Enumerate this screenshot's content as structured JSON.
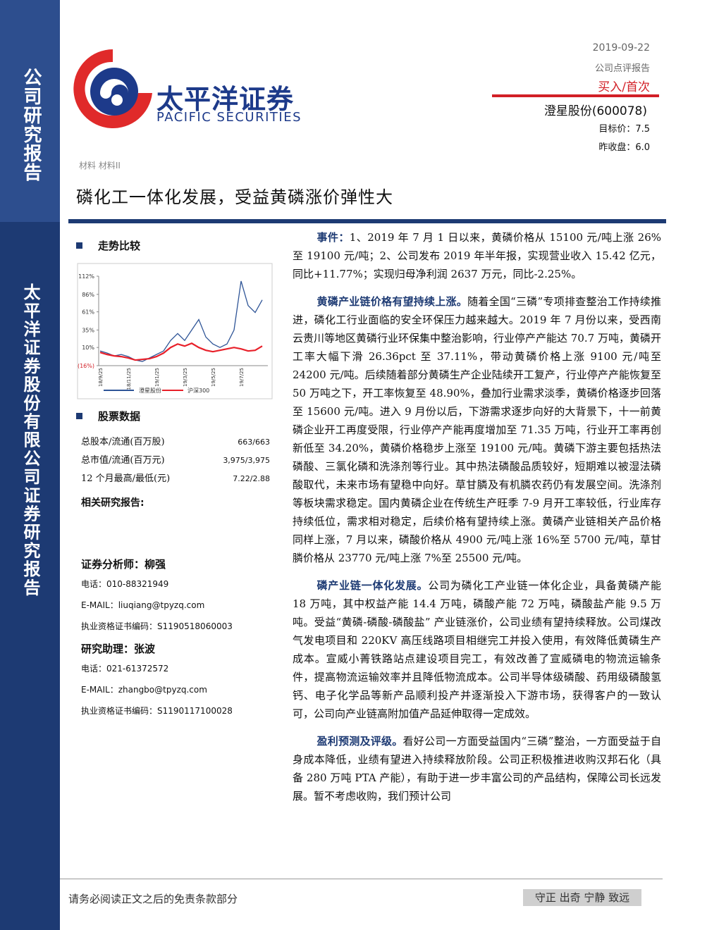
{
  "sidebar": {
    "top": "公司研究报告",
    "bottom": "太平洋证券股份有限公司证券研究报告"
  },
  "header": {
    "logo_cn": "太平洋证券",
    "logo_en": "PACIFIC SECURITIES",
    "date": "2019-09-22",
    "report_type": "公司点评报告",
    "rating": "买入/首次",
    "stock": "澄星股份(600078)",
    "target_price": "目标价：7.5",
    "last_close": "昨收盘：6.0",
    "sector": "材料 材料II",
    "title": "磷化工一体化发展，受益黄磷涨价弹性大"
  },
  "chart_data": {
    "type": "line",
    "title": "走势比较",
    "categories": [
      "18/9/25",
      null,
      null,
      null,
      "18/11/25",
      null,
      null,
      null,
      "19/1/25",
      null,
      null,
      null,
      "19/3/25",
      null,
      null,
      null,
      "19/5/25",
      null,
      null,
      null,
      "19/7/25",
      null,
      null,
      null
    ],
    "series": [
      {
        "name": "澄星股份",
        "color": "#2f5597",
        "values": [
          5,
          2,
          -2,
          0,
          -3,
          -8,
          -10,
          -5,
          0,
          5,
          20,
          30,
          20,
          35,
          50,
          25,
          15,
          10,
          15,
          35,
          105,
          70,
          60,
          78
        ]
      },
      {
        "name": "沪深300",
        "color": "#e8202a",
        "values": [
          3,
          0,
          -2,
          -3,
          -5,
          -8,
          -7,
          -6,
          -3,
          2,
          10,
          15,
          12,
          16,
          10,
          6,
          4,
          6,
          8,
          10,
          8,
          5,
          6,
          12
        ]
      }
    ],
    "ylim": [
      -16,
      112
    ],
    "yticks": [
      {
        "value": 112,
        "label": "112%"
      },
      {
        "value": 86,
        "label": "86%"
      },
      {
        "value": 61,
        "label": "61%"
      },
      {
        "value": 35,
        "label": "35%"
      },
      {
        "value": 10,
        "label": "10%"
      },
      {
        "value": -16,
        "label": "(16%)"
      }
    ]
  },
  "stock_data": {
    "title": "股票数据",
    "rows": [
      [
        "总股本/流通(百万股)",
        "663/663"
      ],
      [
        "总市值/流通(百万元)",
        "3,975/3,975"
      ],
      [
        "12 个月最高/最低(元)",
        "7.22/2.88"
      ]
    ],
    "related": "相关研究报告:"
  },
  "analysts": [
    [
      "证券分析师：柳强",
      "电话：010-88321949",
      "E-MAIL：liuqiang@tpyzq.com",
      "执业资格证书编码：S1190518060003"
    ],
    [
      "研究助理：张波",
      "电话：021-61372572",
      "E-MAIL：zhangbo@tpyzq.com",
      "执业资格证书编码：S1190117100028"
    ]
  ],
  "body": {
    "paragraphs": [
      {
        "lead": "事件：",
        "text": "1、2019 年 7 月 1 日以来，黄磷价格从 15100 元/吨上涨 26%至 19100 元/吨；2、公司发布 2019 年半年报，实现营业收入 15.42 亿元，同比+11.77%；实现归母净利润 2637 万元，同比-2.25%。"
      },
      {
        "lead": "黄磷产业链价格有望持续上涨。",
        "text": "随着全国“三磷”专项排查整治工作持续推进，磷化工行业面临的安全环保压力越来越大。2019 年 7 月份以来，受西南云贵川等地区黄磷行业环保集中整治影响，行业停产产能达 70.7 万吨，黄磷开工率大幅下滑 26.36pct 至 37.11%，带动黄磷价格上涨 9100 元/吨至 24200 元/吨。后续随着部分黄磷生产企业陆续开工复产，行业停产产能恢复至 50 万吨之下，开工率恢复至 48.90%，叠加行业需求淡季，黄磷价格逐步回落至 15600 元/吨。进入 9 月份以后，下游需求逐步向好的大背景下，十一前黄磷企业开工再度受限，行业停产产能再度增加至 71.35 万吨，行业开工率再创新低至 34.20%，黄磷价格稳步上涨至 19100 元/吨。黄磷下游主要包括热法磷酸、三氯化磷和洗涤剂等行业。其中热法磷酸品质较好，短期难以被湿法磷酸取代，未来市场有望稳中向好。草甘膦及有机膦农药仍有发展空间。洗涤剂等板块需求稳定。国内黄磷企业在传统生产旺季 7-9 月开工率较低，行业库存持续低位，需求相对稳定，后续价格有望持续上涨。黄磷产业链相关产品价格同样上涨，7 月以来，磷酸价格从 4900 元/吨上涨 16%至 5700 元/吨，草甘膦价格从 23770 元/吨上涨 7%至 25500 元/吨。"
      },
      {
        "lead": "磷产业链一体化发展。",
        "text": "公司为磷化工产业链一体化企业，具备黄磷产能 18 万吨，其中权益产能 14.4 万吨，磷酸产能 72 万吨，磷酸盐产能 9.5 万吨。受益“黄磷-磷酸-磷酸盐” 产业链涨价，公司业绩有望持续释放。公司煤改气发电项目和 220KV 高压线路项目相继完工并投入使用，有效降低黄磷生产成本。宣威小菁铁路站点建设项目完工，有效改善了宣威磷电的物流运输条件，提高物流运输效率并且降低物流成本。公司半导体级磷酸、药用级磷酸氢钙、电子化学品等新产品顺利投产并逐渐投入下游市场，获得客户的一致认可，公司向产业链高附加值产品延伸取得一定成效。"
      },
      {
        "lead": "盈利预测及评级。",
        "text": "看好公司一方面受益国内“三磷”整治，一方面受益于自身成本降低，业绩有望进入持续释放阶段。公司正积极推进收购汉邦石化（具备 280 万吨 PTA 产能），有助于进一步丰富公司的产品结构，保障公司长远发展。暂不考虑收购，我们预计公司"
      }
    ]
  },
  "footer": {
    "disclaimer": "请务必阅读正文之后的免责条款部分",
    "motto": "守正 出奇 宁静 致远"
  }
}
